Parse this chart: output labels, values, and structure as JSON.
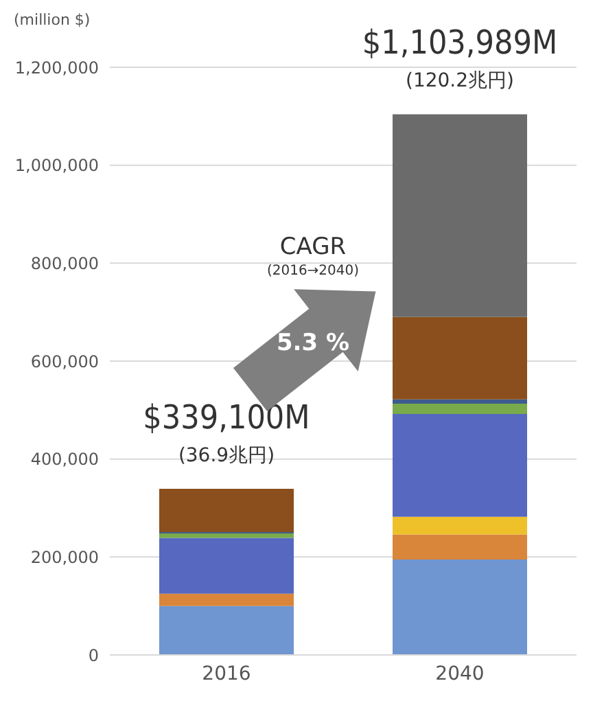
{
  "chart_data": {
    "type": "bar",
    "stacked": true,
    "ylabel": "(million $)",
    "categories": [
      "2016",
      "2040"
    ],
    "series": [
      {
        "color": "#6f96d0",
        "values": [
          100000,
          195000
        ]
      },
      {
        "color": "#d9853a",
        "values": [
          25000,
          51000
        ]
      },
      {
        "color": "#eec02a",
        "values": [
          0,
          36000
        ]
      },
      {
        "color": "#5668c0",
        "values": [
          114000,
          210000
        ]
      },
      {
        "color": "#79aa4b",
        "values": [
          9000,
          21000
        ]
      },
      {
        "color": "#3e5c8e",
        "values": [
          3000,
          9000
        ]
      },
      {
        "color": "#8a4f1c",
        "values": [
          88100,
          168000
        ]
      },
      {
        "color": "#6b6b6b",
        "values": [
          0,
          413989
        ]
      }
    ],
    "ylim": [
      0,
      1200000
    ],
    "yticks": [
      {
        "value": 0,
        "label": "0"
      },
      {
        "value": 200000,
        "label": "200,000"
      },
      {
        "value": 400000,
        "label": "400,000"
      },
      {
        "value": 600000,
        "label": "600,000"
      },
      {
        "value": 800000,
        "label": "800,000"
      },
      {
        "value": 1000000,
        "label": "1,000,000"
      },
      {
        "value": 1200000,
        "label": "1,200,000"
      }
    ],
    "grid": "y",
    "legend": false,
    "totals": [
      "$339,100M",
      "$1,103,989M"
    ],
    "annotations": [
      {
        "text": "(36.9兆円)",
        "x": "2016",
        "y": 339100
      },
      {
        "text": "(120.2兆円)",
        "x": "2040",
        "y": 1103989
      },
      "CAGR",
      "(2016→2040)",
      "5.3 %"
    ]
  }
}
